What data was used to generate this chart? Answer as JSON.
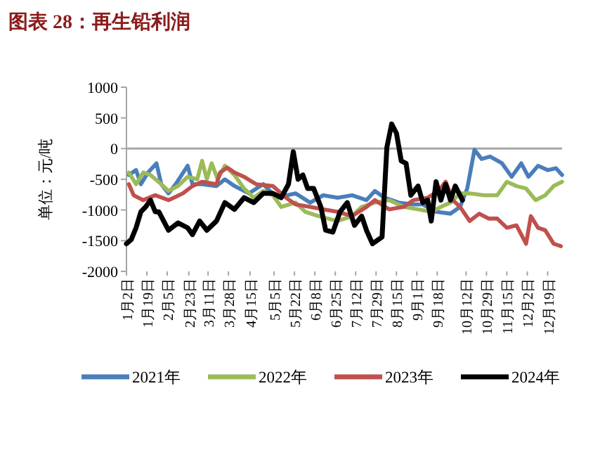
{
  "chart_data": {
    "type": "line",
    "title": "图表 28：再生铅利润",
    "ylabel": "单位：元/吨",
    "xlim": [
      "--01-02",
      "--12-31"
    ],
    "xticks": [
      {
        "value": "--01-02",
        "label": "1月2日"
      },
      {
        "value": "--01-19",
        "label": "1月19日"
      },
      {
        "value": "--02-05",
        "label": "2月5日"
      },
      {
        "value": "--02-23",
        "label": "2月23日"
      },
      {
        "value": "--03-11",
        "label": "3月11日"
      },
      {
        "value": "--03-28",
        "label": "3月28日"
      },
      {
        "value": "--04-15",
        "label": "4月15日"
      },
      {
        "value": "--05-05",
        "label": "5月5日"
      },
      {
        "value": "--05-22",
        "label": "5月22日"
      },
      {
        "value": "--06-08",
        "label": "6月8日"
      },
      {
        "value": "--06-25",
        "label": "6月25日"
      },
      {
        "value": "--07-12",
        "label": "7月12日"
      },
      {
        "value": "--07-29",
        "label": "7月29日"
      },
      {
        "value": "--08-15",
        "label": "8月15日"
      },
      {
        "value": "--09-01",
        "label": "9月1日"
      },
      {
        "value": "--09-18",
        "label": "9月18日"
      },
      {
        "value": "--10-12",
        "label": "10月12日"
      },
      {
        "value": "--10-29",
        "label": "10月29日"
      },
      {
        "value": "--11-15",
        "label": "11月15日"
      },
      {
        "value": "--12-02",
        "label": "12月2日"
      },
      {
        "value": "--12-19",
        "label": "12月19日"
      }
    ],
    "ylim": [
      -2000,
      1000
    ],
    "yticks": [
      -2000,
      -1500,
      -1000,
      -500,
      0,
      500,
      1000
    ],
    "ref_lines": [
      {
        "axis": "y",
        "value": 0,
        "color": "#a6a6a6"
      }
    ],
    "grid": false,
    "legend": "bottom",
    "marker": "none",
    "line_style": "solid",
    "series": [
      {
        "name": "2021年",
        "color": "#4a7ebb",
        "x": [
          "--01-04",
          "--01-10",
          "--01-14",
          "--01-20",
          "--01-27",
          "--01-31",
          "--02-06",
          "--02-12",
          "--02-22",
          "--02-26",
          "--03-06",
          "--03-18",
          "--03-25",
          "--04-02",
          "--04-14",
          "--04-26",
          "--05-07",
          "--05-23",
          "--06-04",
          "--06-15",
          "--06-27",
          "--07-09",
          "--07-21",
          "--07-28",
          "--08-05",
          "--08-17",
          "--08-29",
          "--09-06",
          "--09-17",
          "--09-29",
          "--10-07",
          "--10-13",
          "--10-19",
          "--10-25",
          "--11-01",
          "--11-11",
          "--11-19",
          "--11-27",
          "--12-03",
          "--12-11",
          "--12-19",
          "--12-26",
          "--12-31"
        ],
        "values": [
          -430,
          -350,
          -580,
          -390,
          -240,
          -580,
          -730,
          -580,
          -280,
          -580,
          -580,
          -610,
          -500,
          -610,
          -730,
          -580,
          -800,
          -730,
          -880,
          -760,
          -800,
          -760,
          -840,
          -690,
          -800,
          -880,
          -910,
          -910,
          -1030,
          -1060,
          -950,
          -650,
          -20,
          -170,
          -130,
          -240,
          -460,
          -240,
          -460,
          -280,
          -350,
          -320,
          -430
        ]
      },
      {
        "name": "2022年",
        "color": "#9bbb59",
        "x": [
          "--01-04",
          "--01-10",
          "--01-16",
          "--01-22",
          "--01-31",
          "--02-06",
          "--02-14",
          "--02-22",
          "--03-02",
          "--03-06",
          "--03-10",
          "--03-14",
          "--03-19",
          "--03-25",
          "--04-02",
          "--04-10",
          "--04-18",
          "--04-26",
          "--05-04",
          "--05-11",
          "--05-23",
          "--05-31",
          "--06-11",
          "--06-27",
          "--07-09",
          "--07-17",
          "--07-28",
          "--08-09",
          "--08-21",
          "--09-02",
          "--09-13",
          "--09-21",
          "--09-29",
          "--10-07",
          "--10-15",
          "--10-27",
          "--11-07",
          "--11-15",
          "--11-23",
          "--12-01",
          "--12-09",
          "--12-17",
          "--12-24",
          "--12-31"
        ],
        "values": [
          -390,
          -580,
          -390,
          -430,
          -580,
          -690,
          -610,
          -460,
          -500,
          -200,
          -500,
          -240,
          -500,
          -280,
          -430,
          -650,
          -800,
          -690,
          -760,
          -950,
          -880,
          -1030,
          -1100,
          -1180,
          -1100,
          -950,
          -880,
          -840,
          -950,
          -990,
          -1030,
          -950,
          -880,
          -730,
          -730,
          -760,
          -760,
          -540,
          -610,
          -650,
          -840,
          -760,
          -610,
          -540
        ]
      },
      {
        "name": "2023年",
        "color": "#c0504d",
        "x": [
          "--01-04",
          "--01-08",
          "--01-16",
          "--01-26",
          "--02-06",
          "--02-18",
          "--02-26",
          "--03-06",
          "--03-18",
          "--03-21",
          "--03-27",
          "--04-02",
          "--04-10",
          "--04-20",
          "--05-04",
          "--05-15",
          "--05-23",
          "--06-04",
          "--06-15",
          "--06-27",
          "--07-09",
          "--07-21",
          "--07-28",
          "--08-09",
          "--08-21",
          "--08-29",
          "--09-10",
          "--09-19",
          "--09-25",
          "--10-01",
          "--10-07",
          "--10-15",
          "--10-23",
          "--10-31",
          "--11-07",
          "--11-15",
          "--11-23",
          "--12-01",
          "--12-05",
          "--12-11",
          "--12-17",
          "--12-24",
          "--12-30"
        ],
        "values": [
          -580,
          -760,
          -840,
          -760,
          -840,
          -730,
          -610,
          -540,
          -580,
          -390,
          -310,
          -390,
          -460,
          -580,
          -610,
          -800,
          -910,
          -950,
          -990,
          -1030,
          -1100,
          -950,
          -840,
          -990,
          -950,
          -840,
          -800,
          -690,
          -540,
          -840,
          -950,
          -1180,
          -1060,
          -1140,
          -1140,
          -1290,
          -1250,
          -1550,
          -1100,
          -1290,
          -1330,
          -1550,
          -1590
        ]
      },
      {
        "name": "2024年",
        "color": "#000000",
        "x": [
          "--01-02",
          "--01-06",
          "--01-10",
          "--01-14",
          "--01-18",
          "--01-22",
          "--01-26",
          "--01-29",
          "--02-02",
          "--02-06",
          "--02-14",
          "--02-22",
          "--02-26",
          "--03-04",
          "--03-10",
          "--03-18",
          "--03-25",
          "--04-02",
          "--04-10",
          "--04-18",
          "--04-26",
          "--05-04",
          "--05-11",
          "--05-17",
          "--05-21",
          "--05-25",
          "--05-29",
          "--06-02",
          "--06-07",
          "--06-13",
          "--06-17",
          "--06-23",
          "--06-29",
          "--07-05",
          "--07-11",
          "--07-17",
          "--07-21",
          "--07-26",
          "--08-03",
          "--08-07",
          "--08-11",
          "--08-15",
          "--08-19",
          "--08-23",
          "--08-27",
          "--09-02",
          "--09-06",
          "--09-10",
          "--09-13",
          "--09-17",
          "--09-21",
          "--09-25",
          "--09-29",
          "--10-03",
          "--10-09"
        ],
        "values": [
          -1550,
          -1480,
          -1290,
          -1030,
          -950,
          -840,
          -1030,
          -1030,
          -1180,
          -1330,
          -1210,
          -1290,
          -1400,
          -1180,
          -1330,
          -1180,
          -880,
          -990,
          -800,
          -880,
          -730,
          -730,
          -800,
          -580,
          -50,
          -500,
          -430,
          -650,
          -650,
          -950,
          -1330,
          -1360,
          -1030,
          -880,
          -1250,
          -1100,
          -1330,
          -1550,
          -1440,
          20,
          400,
          250,
          -200,
          -240,
          -760,
          -610,
          -880,
          -840,
          -1180,
          -540,
          -840,
          -580,
          -840,
          -610,
          -840
        ]
      }
    ]
  }
}
